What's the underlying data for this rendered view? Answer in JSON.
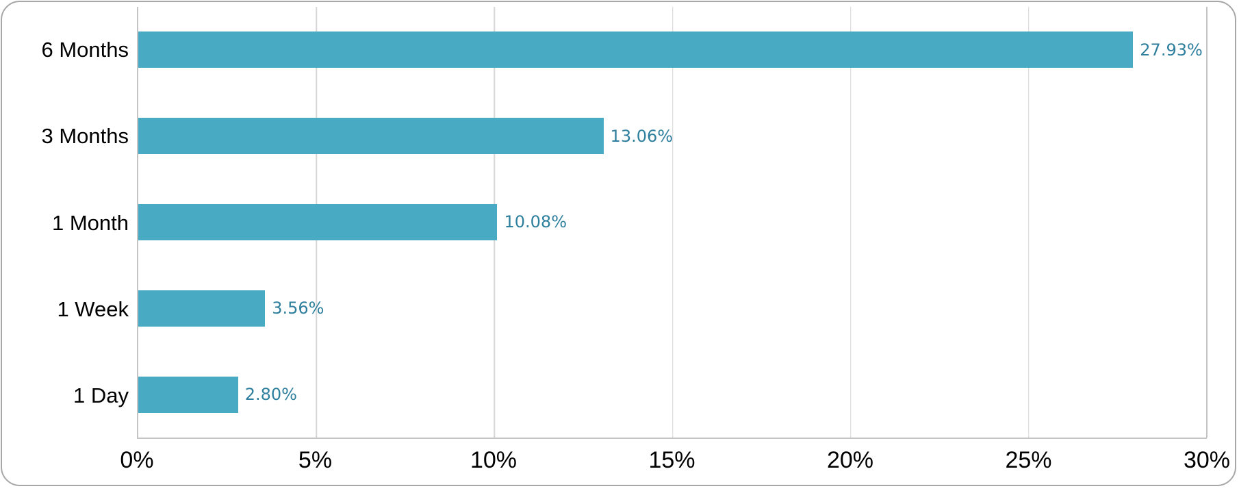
{
  "chart_data": {
    "type": "bar",
    "orientation": "horizontal",
    "title": "",
    "categories": [
      "6 Months",
      "3 Months",
      "1 Month",
      "1 Week",
      "1 Day"
    ],
    "values": [
      27.93,
      13.06,
      10.08,
      3.56,
      2.8
    ],
    "data_labels": [
      "27.93%",
      "13.06%",
      "10.08%",
      "3.56%",
      "2.80%"
    ],
    "x_ticks": [
      "0%",
      "5%",
      "10%",
      "15%",
      "20%",
      "25%",
      "30%"
    ],
    "xlim": [
      0,
      30
    ],
    "xlabel": "",
    "ylabel": "",
    "grid": "vertical-only",
    "legend": "none"
  },
  "style": {
    "bar_color": "#49AAC4",
    "data_label_color": "#2E7F9D",
    "gridline_color": "#D6D6D6",
    "axis_color": "#C4C4C4",
    "frame_border_color": "#A7A7A7",
    "background_color": "#FFFFFF",
    "text_color": "#000000"
  }
}
